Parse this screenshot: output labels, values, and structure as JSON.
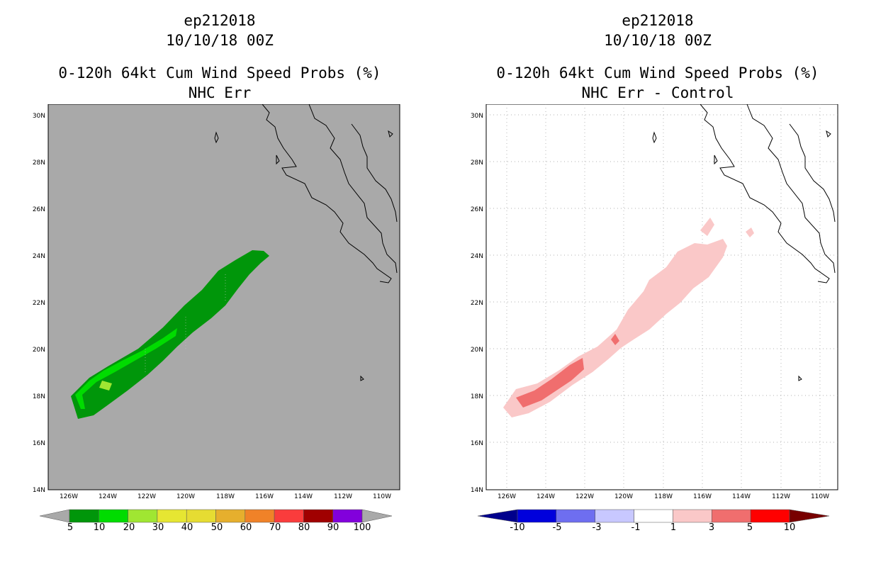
{
  "left": {
    "title_line1": "ep212018",
    "title_line2": "10/10/18 00Z",
    "title_line3": "0-120h 64kt Cum Wind Speed Probs (%)",
    "title_line4": "NHC Err"
  },
  "right": {
    "title_line1": "ep212018",
    "title_line2": "10/10/18 00Z",
    "title_line3": "0-120h 64kt Cum Wind Speed Probs (%)",
    "title_line4": "NHC Err - Control"
  },
  "map_axes": {
    "lat_labels": [
      "30N",
      "28N",
      "26N",
      "24N",
      "22N",
      "20N",
      "18N",
      "16N",
      "14N"
    ],
    "lon_labels": [
      "126W",
      "124W",
      "122W",
      "120W",
      "118W",
      "116W",
      "114W",
      "112W",
      "110W"
    ]
  },
  "colorbar_left": {
    "labels": [
      "5",
      "10",
      "20",
      "30",
      "40",
      "50",
      "60",
      "70",
      "80",
      "90",
      "100"
    ],
    "colors": [
      "#00960a",
      "#00dc00",
      "#a0e632",
      "#e6e632",
      "#e6dc32",
      "#e6af2d",
      "#f08228",
      "#fa3c3c",
      "#a00000",
      "#8200dc"
    ]
  },
  "colorbar_right": {
    "labels": [
      "-10",
      "-5",
      "-3",
      "-1",
      "1",
      "3",
      "5",
      "10"
    ],
    "colors": [
      "#0000dc",
      "#6e6ef0",
      "#c8c8ff",
      "#ffffff",
      "#fac8c8",
      "#f06e6e",
      "#ff0000"
    ],
    "low_color": "#00008c",
    "high_color": "#780000"
  },
  "colors": {
    "map_background_left": "#a9a9a9",
    "map_background_right": "#ffffff"
  }
}
